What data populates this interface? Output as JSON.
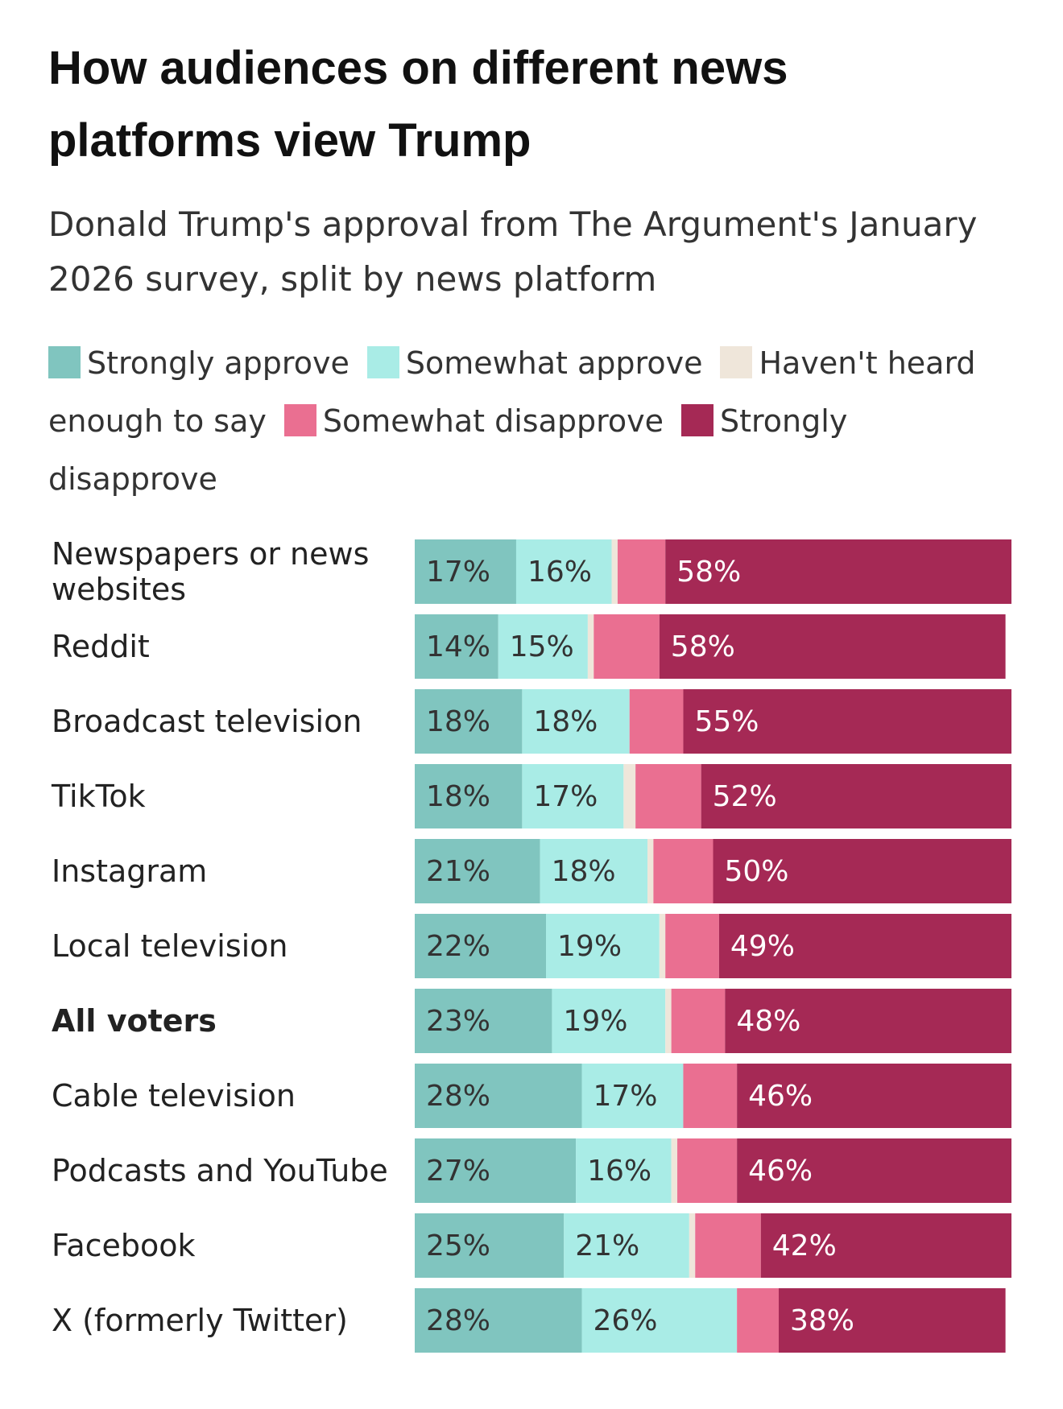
{
  "chart_data": {
    "type": "stacked-bar-horizontal",
    "title": "How audiences on different news platforms view Trump",
    "subtitle": "Donald Trump's approval from The Argument's January 2026 survey, split by news platform",
    "categories": [
      "Newspapers or news websites",
      "Reddit",
      "Broadcast television",
      "TikTok",
      "Instagram",
      "Local television",
      "All voters",
      "Cable television",
      "Podcasts and YouTube",
      "Facebook",
      "X (formerly Twitter)"
    ],
    "xlim": [
      0,
      100
    ],
    "series": [
      {
        "name": "Strongly approve",
        "color": "#80c5bf",
        "values": [
          17,
          14,
          18,
          18,
          21,
          22,
          23,
          28,
          27,
          25,
          28
        ],
        "value_labels": [
          "17%",
          "14%",
          "18%",
          "18%",
          "21%",
          "22%",
          "23%",
          "28%",
          "27%",
          "25%",
          "28%"
        ]
      },
      {
        "name": "Somewhat approve",
        "color": "#a9ece6",
        "values": [
          16,
          15,
          18,
          17,
          18,
          19,
          19,
          17,
          16,
          21,
          26
        ],
        "value_labels": [
          "16%",
          "15%",
          "18%",
          "17%",
          "18%",
          "19%",
          "19%",
          "17%",
          "16%",
          "21%",
          "26%"
        ]
      },
      {
        "name": "Haven't heard enough to say",
        "color": "#efe6da",
        "values": [
          1,
          1,
          0,
          2,
          1,
          1,
          1,
          0,
          1,
          1,
          0
        ]
      },
      {
        "name": "Somewhat disapprove",
        "color": "#ea6f91",
        "values": [
          8,
          11,
          9,
          11,
          10,
          9,
          9,
          9,
          10,
          11,
          7
        ]
      },
      {
        "name": "Strongly disapprove",
        "color": "#a52955",
        "values": [
          58,
          58,
          55,
          52,
          50,
          49,
          48,
          46,
          46,
          42,
          38
        ],
        "value_labels": [
          "58%",
          "58%",
          "55%",
          "52%",
          "50%",
          "49%",
          "48%",
          "46%",
          "46%",
          "42%",
          "38%"
        ]
      }
    ]
  }
}
